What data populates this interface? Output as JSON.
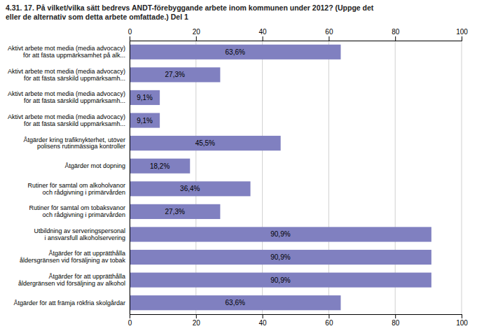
{
  "chart_data": {
    "type": "bar",
    "orientation": "horizontal",
    "title": "4.31. 17. På vilket/vilka sätt bedrevs ANDT-förebyggande arbete inom kommunen under 2012? (Uppge det\neller de alternativ som detta arbete omfattade.) Del 1",
    "categories": [
      "Aktivt arbete mot media (media advocacy)\nför att fästa uppmärksamhet på alk...",
      "Aktivt arbete mot media (media advocacy)\nför att fästa särskild uppmärksamh...",
      "Aktivt arbete mot media (media advocacy)\nför att fästa särskild uppmärksamh...",
      "Aktivt arbete mot media (media advocacy)\nför att fästa särskild uppmärksamh...",
      "Åtgärder kring trafiknykterhet, utöver\npolisens rutinmässiga kontroller",
      "Åtgärder mot dopning",
      "Rutiner för samtal om alkoholvanor\noch rådgivning i primärvården",
      "Rutiner för samtal om tobaksvanor\noch rådgivning i primärvården",
      "Utbildning av serveringspersonal\ni ansvarsfull alkoholservering",
      "Åtgärder för att upprätthålla\nåldersgränsen vid försäljning av tobak",
      "Åtgärder för att upprätthålla\nåldergränsen vid försäljning av alkohol",
      "Åtgärder för att främja rökfria skolgårdar"
    ],
    "values": [
      63.6,
      27.3,
      9.1,
      9.1,
      45.5,
      18.2,
      36.4,
      27.3,
      90.9,
      90.9,
      90.9,
      63.6
    ],
    "value_labels": [
      "63,6%",
      "27,3%",
      "9,1%",
      "9,1%",
      "45,5%",
      "18,2%",
      "36,4%",
      "27,3%",
      "90,9%",
      "90,9%",
      "90,9%",
      "63,6%"
    ],
    "data_labels": true,
    "color": "#8080C0",
    "xlim": [
      0,
      100
    ],
    "xticks": [
      0,
      20,
      40,
      60,
      80,
      100
    ],
    "grid": true
  }
}
